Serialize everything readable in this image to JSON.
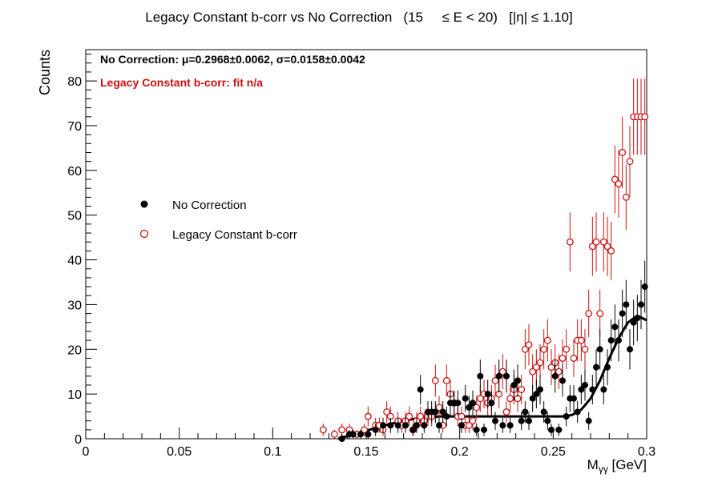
{
  "chart_data": {
    "type": "scatter",
    "title": "Legacy Constant b-corr vs No Correction   (15     ≤ E < 20)   [|η| ≤ 1.10]",
    "xlabel": "Mγγ [GeV]",
    "ylabel": "Counts",
    "xlim": [
      0,
      0.3
    ],
    "ylim": [
      0,
      87
    ],
    "x_ticks": [
      "0",
      "0.05",
      "0.1",
      "0.15",
      "0.2",
      "0.25",
      "0.3"
    ],
    "y_ticks": [
      "0",
      "10",
      "20",
      "30",
      "40",
      "50",
      "60",
      "70",
      "80"
    ],
    "legend_placement": "center-left",
    "colors": {
      "no_correction": "#000000",
      "legacy": "#cc1111"
    },
    "annotations": [
      "No Correction:  μ=0.2968±0.0062,  σ=0.0158±0.0042",
      "Legacy Constant b-corr:  fit n/a"
    ],
    "series": [
      {
        "name": "No Correction",
        "marker": "filled-circle",
        "x": [
          0.137,
          0.141,
          0.143,
          0.147,
          0.151,
          0.155,
          0.159,
          0.163,
          0.167,
          0.171,
          0.175,
          0.177,
          0.179,
          0.181,
          0.183,
          0.185,
          0.187,
          0.189,
          0.191,
          0.193,
          0.195,
          0.197,
          0.199,
          0.201,
          0.203,
          0.205,
          0.207,
          0.209,
          0.211,
          0.213,
          0.215,
          0.217,
          0.219,
          0.221,
          0.223,
          0.225,
          0.227,
          0.229,
          0.231,
          0.233,
          0.235,
          0.237,
          0.239,
          0.241,
          0.243,
          0.245,
          0.247,
          0.249,
          0.251,
          0.253,
          0.255,
          0.257,
          0.259,
          0.261,
          0.263,
          0.265,
          0.267,
          0.269,
          0.271,
          0.273,
          0.275,
          0.277,
          0.279,
          0.281,
          0.283,
          0.285,
          0.287,
          0.289,
          0.291,
          0.293,
          0.295,
          0.297,
          0.299
        ],
        "y": [
          0,
          1,
          1,
          1,
          1,
          2,
          3,
          3,
          3,
          3,
          2,
          3,
          11,
          3,
          6,
          6,
          6,
          3,
          6,
          5,
          8,
          8,
          8,
          3,
          9,
          7,
          8,
          2,
          14,
          2,
          10,
          8,
          4,
          14,
          3,
          14,
          3,
          12,
          13,
          4,
          6,
          4,
          9,
          10,
          11,
          6,
          4,
          2,
          14,
          2,
          13,
          5,
          9,
          9,
          6,
          11,
          12,
          4,
          11,
          16,
          20,
          11,
          16,
          22,
          25,
          22,
          28,
          30,
          20,
          26,
          27,
          30,
          34
        ],
        "err": [
          1,
          1,
          1,
          1,
          1,
          1.4,
          1.7,
          1.7,
          1.7,
          1.7,
          1.4,
          1.7,
          3.3,
          1.7,
          2.4,
          2.4,
          2.4,
          1.7,
          2.4,
          2.2,
          2.8,
          2.8,
          2.8,
          1.7,
          3,
          2.6,
          2.8,
          1.4,
          3.7,
          1.4,
          3.2,
          2.8,
          2,
          3.7,
          1.7,
          3.7,
          1.7,
          3.5,
          3.6,
          2,
          2.4,
          2,
          3,
          3.2,
          3.3,
          2.4,
          2,
          1.4,
          3.7,
          1.4,
          3.6,
          2.2,
          3,
          3,
          2.4,
          3.3,
          3.5,
          2,
          3.3,
          4,
          4.5,
          3.3,
          4,
          4.7,
          5,
          4.7,
          5.3,
          5.5,
          4.5,
          5.1,
          5.2,
          5.5,
          5.8
        ]
      },
      {
        "name": "Legacy Constant b-corr",
        "marker": "open-circle",
        "x": [
          0.127,
          0.133,
          0.137,
          0.141,
          0.145,
          0.149,
          0.151,
          0.155,
          0.157,
          0.159,
          0.161,
          0.163,
          0.167,
          0.169,
          0.171,
          0.173,
          0.175,
          0.177,
          0.179,
          0.181,
          0.183,
          0.185,
          0.187,
          0.189,
          0.191,
          0.193,
          0.195,
          0.197,
          0.199,
          0.201,
          0.203,
          0.205,
          0.207,
          0.209,
          0.211,
          0.213,
          0.215,
          0.217,
          0.219,
          0.221,
          0.223,
          0.225,
          0.227,
          0.229,
          0.231,
          0.233,
          0.235,
          0.237,
          0.239,
          0.241,
          0.243,
          0.245,
          0.247,
          0.249,
          0.251,
          0.253,
          0.255,
          0.257,
          0.259,
          0.261,
          0.263,
          0.265,
          0.267,
          0.269,
          0.271,
          0.273,
          0.275,
          0.277,
          0.279,
          0.281,
          0.283,
          0.285,
          0.287,
          0.289,
          0.291,
          0.293,
          0.295,
          0.297,
          0.299
        ],
        "y": [
          2,
          1,
          2,
          2,
          1,
          2,
          5,
          3,
          3,
          2,
          6,
          5,
          4,
          3,
          4,
          5,
          2,
          4,
          5,
          4,
          5,
          5,
          13,
          7,
          3,
          13,
          10,
          8,
          5,
          5,
          3,
          3,
          4,
          7,
          9,
          10,
          8,
          9,
          13,
          10,
          15,
          6,
          9,
          11,
          9,
          11,
          20,
          21,
          15,
          16,
          17,
          20,
          22,
          16,
          17,
          15,
          18,
          20,
          44,
          18,
          22,
          22,
          20,
          28,
          43,
          44,
          28,
          44,
          43,
          42,
          58,
          57,
          64,
          54,
          62,
          72,
          72,
          72,
          72
        ],
        "err": [
          1.4,
          1,
          1.4,
          1.4,
          1,
          1.4,
          2.2,
          1.7,
          1.7,
          1.4,
          2.4,
          2.2,
          2,
          1.7,
          2,
          2.2,
          1.4,
          2,
          2.2,
          2,
          2.2,
          2.2,
          3.6,
          2.6,
          1.7,
          3.6,
          3.2,
          2.8,
          2.2,
          2.2,
          1.7,
          1.7,
          2,
          2.6,
          3,
          3.2,
          2.8,
          3,
          3.6,
          3.2,
          3.9,
          2.4,
          3,
          3.3,
          3,
          3.3,
          4.5,
          4.6,
          3.9,
          4,
          4.1,
          4.5,
          4.7,
          4,
          4.1,
          3.9,
          4.2,
          4.5,
          6.6,
          4.2,
          4.7,
          4.7,
          4.5,
          5.3,
          6.6,
          6.6,
          5.3,
          6.6,
          6.6,
          6.5,
          7.6,
          7.5,
          8,
          7.3,
          7.9,
          8.5,
          8.5,
          8.5,
          8.5
        ]
      }
    ],
    "fit_curve": {
      "series": "No Correction",
      "x": [
        0.135,
        0.14,
        0.145,
        0.15,
        0.155,
        0.16,
        0.165,
        0.17,
        0.175,
        0.18,
        0.185,
        0.19,
        0.195,
        0.2,
        0.205,
        0.21,
        0.215,
        0.22,
        0.225,
        0.23,
        0.235,
        0.24,
        0.245,
        0.25,
        0.255,
        0.26,
        0.265,
        0.27,
        0.275,
        0.28,
        0.285,
        0.29,
        0.295,
        0.3
      ],
      "y": [
        0,
        0.6,
        1.2,
        1.8,
        2.4,
        3,
        3.5,
        4,
        4.4,
        4.7,
        4.9,
        5,
        5,
        5,
        5,
        5,
        5,
        5,
        5,
        5,
        5,
        5,
        5,
        5,
        5,
        5.3,
        6.5,
        9,
        13,
        18,
        22.5,
        26,
        27.5,
        26.5
      ]
    }
  }
}
